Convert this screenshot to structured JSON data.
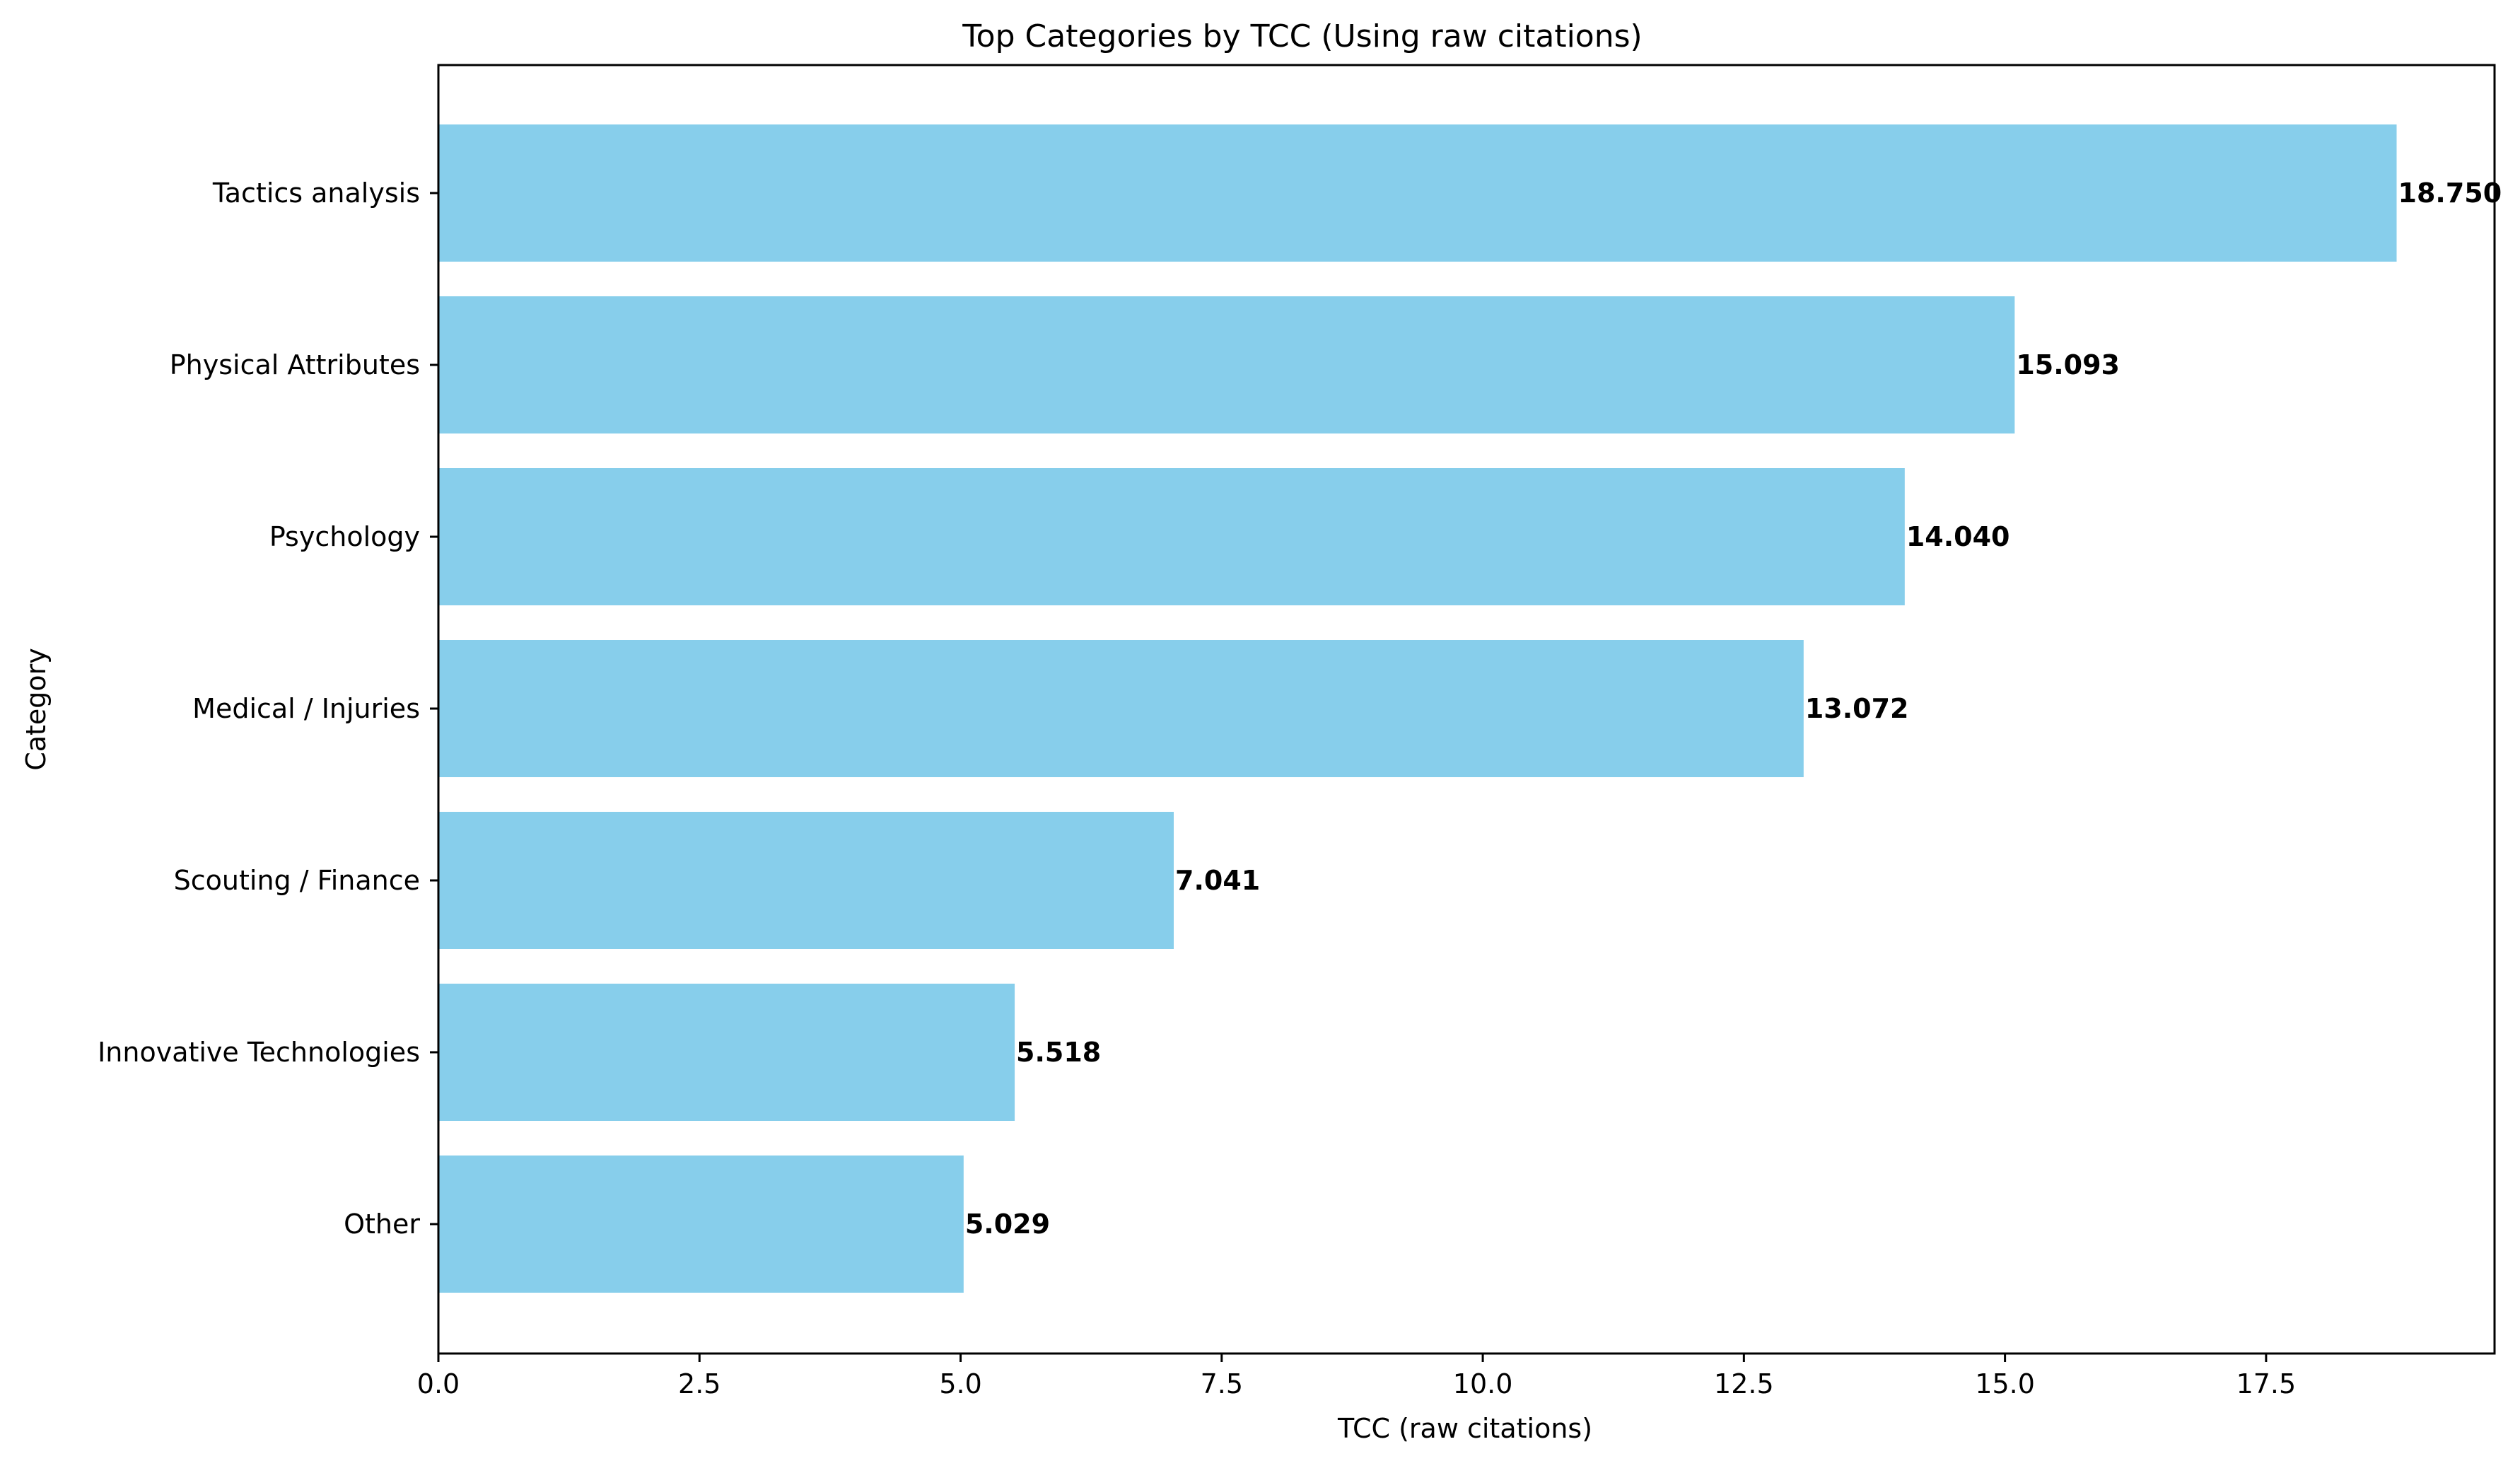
{
  "chart_data": {
    "type": "bar",
    "orientation": "horizontal",
    "title": "Top Categories by TCC (Using raw citations)",
    "xlabel": "TCC (raw citations)",
    "ylabel": "Category",
    "categories": [
      "Tactics analysis",
      "Physical Attributes",
      "Psychology",
      "Medical / Injuries",
      "Scouting / Finance",
      "Innovative Technologies",
      "Other"
    ],
    "values": [
      18.75,
      15.093,
      14.04,
      13.072,
      7.041,
      5.518,
      5.029
    ],
    "value_labels": [
      "18.750",
      "15.093",
      "14.040",
      "13.072",
      "7.041",
      "5.518",
      "5.029"
    ],
    "xlim": [
      0,
      19.6875
    ],
    "xticks": [
      0,
      2.5,
      5,
      7.5,
      10,
      12.5,
      15,
      17.5
    ],
    "xtick_labels": [
      "0.0",
      "2.5",
      "5.0",
      "7.5",
      "10.0",
      "12.5",
      "15.0",
      "17.5"
    ],
    "bar_color": "#87ceeb",
    "grid": false,
    "legend": "none"
  }
}
